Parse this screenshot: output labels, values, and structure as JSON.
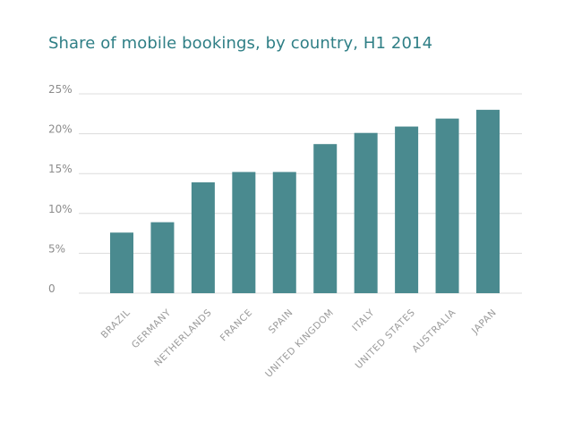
{
  "chart_data": {
    "type": "bar",
    "title": "Share of mobile bookings, by country, H1 2014",
    "xlabel": "",
    "ylabel": "",
    "categories": [
      "BRAZIL",
      "GERMANY",
      "NETHERLANDS",
      "FRANCE",
      "SPAIN",
      "UNITED KINGDOM",
      "ITALY",
      "UNITED STATES",
      "AUSTRALIA",
      "JAPAN"
    ],
    "values": [
      7.6,
      8.9,
      13.9,
      15.2,
      15.2,
      18.7,
      20.1,
      20.9,
      21.9,
      23.0
    ],
    "ylim": [
      0,
      25
    ],
    "yticks": [
      0,
      5,
      10,
      15,
      20,
      25
    ],
    "ytick_labels": [
      "0",
      "5%",
      "10%",
      "15%",
      "20%",
      "25%"
    ],
    "grid": true,
    "bar_color": "#4a8a8f",
    "title_color": "#2f7f86"
  }
}
